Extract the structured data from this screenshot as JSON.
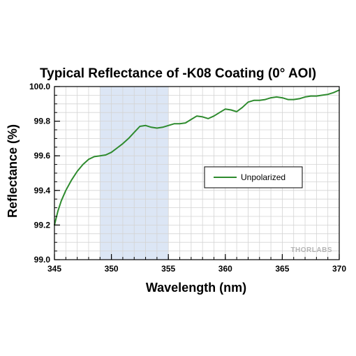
{
  "chart_data": {
    "type": "line",
    "title": "Typical Reflectance of -K08 Coating (0° AOI)",
    "xlabel": "Wavelength (nm)",
    "ylabel": "Reflectance (%)",
    "xlim": [
      345,
      370
    ],
    "ylim": [
      99.0,
      100.0
    ],
    "x_ticks": [
      "345",
      "350",
      "355",
      "360",
      "365",
      "370"
    ],
    "y_ticks": [
      "99.0",
      "99.2",
      "99.4",
      "99.6",
      "99.8",
      "100.0"
    ],
    "grid": true,
    "legend_position": "center-right",
    "shaded_region": {
      "x_range": [
        349,
        355
      ],
      "color": "#dce6f5"
    },
    "watermark": "THORLABS",
    "series": [
      {
        "name": "Unpolarized",
        "color": "#2e8b2e",
        "x": [
          345.0,
          345.3,
          345.6,
          346.0,
          346.5,
          347.0,
          347.5,
          348.0,
          348.5,
          349.0,
          349.5,
          350.0,
          350.5,
          351.0,
          351.5,
          352.0,
          352.5,
          353.0,
          353.5,
          354.0,
          354.5,
          355.0,
          355.5,
          356.0,
          356.5,
          357.0,
          357.5,
          358.0,
          358.5,
          359.0,
          359.5,
          360.0,
          360.5,
          361.0,
          361.5,
          362.0,
          362.5,
          363.0,
          363.5,
          364.0,
          364.5,
          365.0,
          365.5,
          366.0,
          366.5,
          367.0,
          367.5,
          368.0,
          368.5,
          369.0,
          369.5,
          370.0
        ],
        "y": [
          99.2,
          99.28,
          99.34,
          99.4,
          99.46,
          99.51,
          99.55,
          99.58,
          99.595,
          99.6,
          99.605,
          99.62,
          99.645,
          99.67,
          99.7,
          99.735,
          99.77,
          99.775,
          99.765,
          99.76,
          99.765,
          99.775,
          99.785,
          99.785,
          99.79,
          99.81,
          99.83,
          99.825,
          99.815,
          99.83,
          99.85,
          99.87,
          99.865,
          99.855,
          99.88,
          99.91,
          99.92,
          99.92,
          99.925,
          99.935,
          99.94,
          99.935,
          99.925,
          99.925,
          99.93,
          99.94,
          99.945,
          99.945,
          99.95,
          99.955,
          99.965,
          99.98
        ]
      }
    ]
  }
}
